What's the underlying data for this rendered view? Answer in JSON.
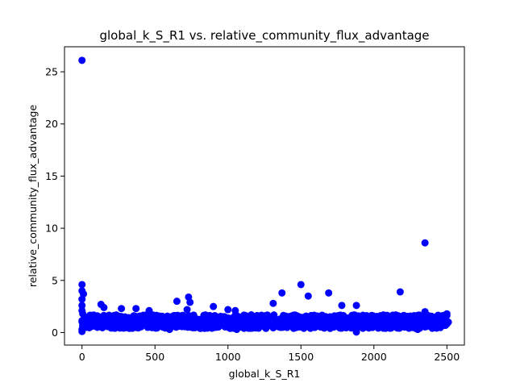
{
  "chart_data": {
    "type": "scatter",
    "title": "global_k_S_R1 vs. relative_community_flux_advantage",
    "xlabel": "global_k_S_R1",
    "ylabel": "relative_community_flux_advantage",
    "xlim": [
      -120,
      2620
    ],
    "ylim": [
      -1.2,
      27.4
    ],
    "xticks": [
      0,
      500,
      1000,
      1500,
      2000,
      2500
    ],
    "yticks": [
      0,
      5,
      10,
      15,
      20,
      25
    ],
    "grid": false,
    "legend": "none",
    "marker_color": "#0000ff",
    "band": {
      "x_range": [
        0,
        2500
      ],
      "y_range": [
        0.4,
        1.7
      ]
    },
    "points": [
      [
        0,
        26.1
      ],
      [
        2350,
        8.6
      ],
      [
        0,
        4.6
      ],
      [
        0,
        4.0
      ],
      [
        10,
        3.7
      ],
      [
        0,
        3.2
      ],
      [
        0,
        2.6
      ],
      [
        0,
        2.1
      ],
      [
        5,
        1.8
      ],
      [
        0,
        0.3
      ],
      [
        0,
        0.1
      ],
      [
        5,
        0.5
      ],
      [
        130,
        2.7
      ],
      [
        150,
        2.4
      ],
      [
        270,
        2.3
      ],
      [
        370,
        2.3
      ],
      [
        460,
        2.1
      ],
      [
        650,
        3.0
      ],
      [
        730,
        3.4
      ],
      [
        740,
        2.9
      ],
      [
        720,
        2.2
      ],
      [
        900,
        2.5
      ],
      [
        1000,
        2.2
      ],
      [
        1050,
        2.1
      ],
      [
        1060,
        0.3
      ],
      [
        1310,
        2.8
      ],
      [
        1370,
        3.8
      ],
      [
        1500,
        4.6
      ],
      [
        1550,
        3.5
      ],
      [
        1690,
        3.8
      ],
      [
        1780,
        2.6
      ],
      [
        1880,
        2.6
      ],
      [
        1880,
        0.05
      ],
      [
        2180,
        3.9
      ],
      [
        2350,
        2.0
      ],
      [
        2500,
        1.8
      ],
      [
        2510,
        1.0
      ],
      [
        600,
        0.3
      ],
      [
        1700,
        0.4
      ],
      [
        2300,
        0.3
      ]
    ]
  }
}
